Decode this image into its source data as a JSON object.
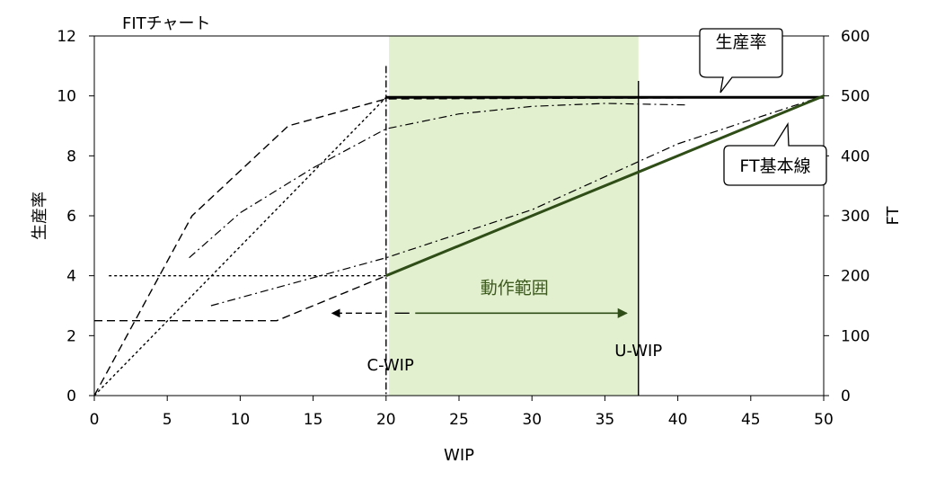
{
  "chart_data": {
    "type": "line",
    "title": "FITチャート",
    "xlabel": "WIP",
    "ylabel": "生産率",
    "y2label": "FT",
    "xlim": [
      0,
      50
    ],
    "ylim": [
      0,
      12
    ],
    "y2lim": [
      0,
      600
    ],
    "xticks": [
      0,
      5,
      10,
      15,
      20,
      25,
      30,
      35,
      40,
      45,
      50
    ],
    "yticks": [
      0,
      2,
      4,
      6,
      8,
      10,
      12
    ],
    "y2ticks": [
      0,
      100,
      200,
      300,
      400,
      500,
      600
    ],
    "grid": false,
    "legend": "none",
    "highlight_region": {
      "x": [
        20.2,
        37.3
      ],
      "color": "#e2f0cf"
    },
    "vlines": [
      {
        "x": 20,
        "y": [
          0,
          11.0
        ],
        "style": "dashdot"
      },
      {
        "x": 37.3,
        "y": [
          0,
          10.5
        ],
        "style": "solid"
      }
    ],
    "series": [
      {
        "axis": "left",
        "style": "dashed",
        "points": [
          [
            0,
            0
          ],
          [
            6.7,
            6
          ],
          [
            13.3,
            9
          ],
          [
            20,
            9.9
          ],
          [
            50,
            9.95
          ]
        ]
      },
      {
        "axis": "left",
        "style": "dotted",
        "points": [
          [
            0,
            0
          ],
          [
            20,
            9.95
          ],
          [
            50,
            9.95
          ]
        ]
      },
      {
        "axis": "left",
        "style": "dashdot",
        "points": [
          [
            6.5,
            4.6
          ],
          [
            10,
            6.1
          ],
          [
            15,
            7.6
          ],
          [
            20,
            8.9
          ],
          [
            25,
            9.4
          ],
          [
            30,
            9.65
          ],
          [
            35,
            9.75
          ],
          [
            40.5,
            9.7
          ]
        ]
      },
      {
        "axis": "left",
        "style": "solid-bold",
        "points": [
          [
            20,
            9.95
          ],
          [
            50,
            9.95
          ]
        ]
      },
      {
        "axis": "right",
        "style": "dashed",
        "points": [
          [
            0,
            125
          ],
          [
            12.5,
            125
          ],
          [
            20,
            200
          ],
          [
            50,
            500
          ]
        ]
      },
      {
        "axis": "right",
        "style": "dotted",
        "points": [
          [
            1,
            200
          ],
          [
            20,
            200
          ]
        ]
      },
      {
        "axis": "right",
        "style": "dashdot",
        "points": [
          [
            8,
            150
          ],
          [
            20,
            230
          ],
          [
            30,
            310
          ],
          [
            40,
            420
          ],
          [
            50,
            500
          ]
        ]
      },
      {
        "axis": "right",
        "style": "solid-green",
        "points": [
          [
            20,
            200
          ],
          [
            37.3,
            373
          ],
          [
            50,
            500
          ]
        ]
      }
    ],
    "annotations": {
      "c_wip": "C-WIP",
      "u_wip": "U-WIP",
      "range": "動作範囲",
      "callout_rate": "生産率",
      "callout_ft": "FT基本線"
    }
  }
}
